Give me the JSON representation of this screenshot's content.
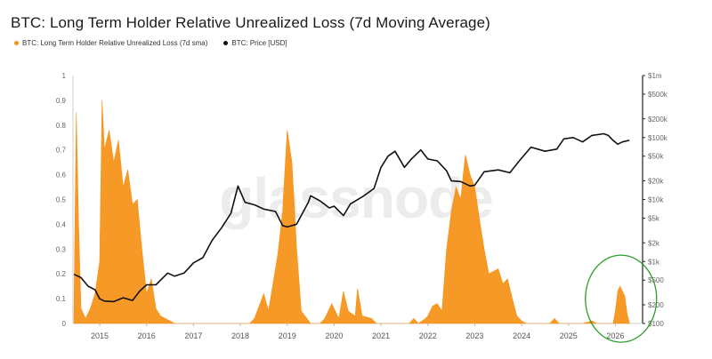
{
  "chart_data": {
    "type": "area",
    "title": "BTC: Long Term Holder Relative Unrealized Loss (7d Moving Average)",
    "watermark": "glassnode",
    "legend": [
      {
        "label": "BTC: Long Term Holder Relative Unrealized Loss (7d sma)",
        "color": "#f7931a"
      },
      {
        "label": "BTC: Price [USD]",
        "color": "#111111"
      }
    ],
    "x_ticks": [
      "2015",
      "2016",
      "2017",
      "2018",
      "2019",
      "2020",
      "2021",
      "2022",
      "2023",
      "2024",
      "2025",
      "2026"
    ],
    "y_left": {
      "ticks": [
        "0",
        "0.1",
        "0.2",
        "0.3",
        "0.4",
        "0.5",
        "0.6",
        "0.7",
        "0.8",
        "0.9",
        "1"
      ],
      "ylim": [
        0,
        1
      ]
    },
    "y_right": {
      "scale": "log",
      "ticks": [
        "$100",
        "$200",
        "$500",
        "$1k",
        "$2k",
        "$5k",
        "$10k",
        "$20k",
        "$50k",
        "$100k",
        "$200k",
        "$500k",
        "$1m"
      ]
    },
    "series": [
      {
        "name": "BTC: Long Term Holder Relative Unrealized Loss (7d sma)",
        "color": "#f7931a",
        "points": [
          [
            2014.45,
            0.05
          ],
          [
            2014.5,
            0.85
          ],
          [
            2014.55,
            0.4
          ],
          [
            2014.6,
            0.06
          ],
          [
            2014.7,
            0.02
          ],
          [
            2014.8,
            0.06
          ],
          [
            2014.9,
            0.12
          ],
          [
            2015.0,
            0.25
          ],
          [
            2015.05,
            0.9
          ],
          [
            2015.1,
            0.7
          ],
          [
            2015.2,
            0.78
          ],
          [
            2015.3,
            0.65
          ],
          [
            2015.4,
            0.74
          ],
          [
            2015.5,
            0.55
          ],
          [
            2015.6,
            0.62
          ],
          [
            2015.7,
            0.48
          ],
          [
            2015.8,
            0.5
          ],
          [
            2015.9,
            0.3
          ],
          [
            2016.0,
            0.12
          ],
          [
            2016.1,
            0.18
          ],
          [
            2016.2,
            0.06
          ],
          [
            2016.3,
            0.03
          ],
          [
            2016.5,
            0.01
          ],
          [
            2016.6,
            0.0
          ],
          [
            2017.0,
            0.0
          ],
          [
            2018.0,
            0.0
          ],
          [
            2018.2,
            0.0
          ],
          [
            2018.3,
            0.02
          ],
          [
            2018.5,
            0.12
          ],
          [
            2018.6,
            0.05
          ],
          [
            2018.8,
            0.28
          ],
          [
            2018.9,
            0.45
          ],
          [
            2019.0,
            0.78
          ],
          [
            2019.1,
            0.65
          ],
          [
            2019.2,
            0.3
          ],
          [
            2019.3,
            0.05
          ],
          [
            2019.5,
            0.0
          ],
          [
            2019.7,
            0.0
          ],
          [
            2019.8,
            0.02
          ],
          [
            2019.95,
            0.08
          ],
          [
            2020.1,
            0.02
          ],
          [
            2020.2,
            0.13
          ],
          [
            2020.3,
            0.05
          ],
          [
            2020.45,
            0.03
          ],
          [
            2020.5,
            0.14
          ],
          [
            2020.6,
            0.03
          ],
          [
            2020.8,
            0.02
          ],
          [
            2020.9,
            0.0
          ],
          [
            2021.0,
            0.0
          ],
          [
            2021.6,
            0.0
          ],
          [
            2021.7,
            0.02
          ],
          [
            2021.8,
            0.0
          ],
          [
            2021.95,
            0.02
          ],
          [
            2022.0,
            0.03
          ],
          [
            2022.1,
            0.07
          ],
          [
            2022.2,
            0.08
          ],
          [
            2022.3,
            0.05
          ],
          [
            2022.4,
            0.3
          ],
          [
            2022.5,
            0.45
          ],
          [
            2022.6,
            0.55
          ],
          [
            2022.7,
            0.5
          ],
          [
            2022.8,
            0.68
          ],
          [
            2022.9,
            0.6
          ],
          [
            2023.0,
            0.55
          ],
          [
            2023.1,
            0.42
          ],
          [
            2023.2,
            0.3
          ],
          [
            2023.3,
            0.2
          ],
          [
            2023.5,
            0.22
          ],
          [
            2023.6,
            0.16
          ],
          [
            2023.7,
            0.18
          ],
          [
            2023.8,
            0.1
          ],
          [
            2023.9,
            0.03
          ],
          [
            2024.0,
            0.01
          ],
          [
            2024.1,
            0.0
          ],
          [
            2024.6,
            0.0
          ],
          [
            2024.7,
            0.02
          ],
          [
            2024.8,
            0.0
          ],
          [
            2025.3,
            0.0
          ],
          [
            2025.5,
            0.01
          ],
          [
            2025.6,
            0.0
          ],
          [
            2025.95,
            0.0
          ],
          [
            2026.0,
            0.05
          ],
          [
            2026.05,
            0.13
          ],
          [
            2026.1,
            0.15
          ],
          [
            2026.2,
            0.11
          ],
          [
            2026.25,
            0.04
          ],
          [
            2026.3,
            0.0
          ]
        ]
      },
      {
        "name": "BTC: Price [USD]",
        "color": "#111111",
        "axis": "right",
        "points": [
          [
            2014.45,
            620
          ],
          [
            2014.6,
            550
          ],
          [
            2014.75,
            400
          ],
          [
            2014.9,
            350
          ],
          [
            2015.0,
            250
          ],
          [
            2015.1,
            230
          ],
          [
            2015.3,
            225
          ],
          [
            2015.5,
            260
          ],
          [
            2015.7,
            235
          ],
          [
            2015.85,
            330
          ],
          [
            2016.0,
            420
          ],
          [
            2016.2,
            420
          ],
          [
            2016.45,
            650
          ],
          [
            2016.6,
            580
          ],
          [
            2016.8,
            650
          ],
          [
            2017.0,
            950
          ],
          [
            2017.2,
            1150
          ],
          [
            2017.4,
            2200
          ],
          [
            2017.6,
            3500
          ],
          [
            2017.8,
            6000
          ],
          [
            2017.95,
            16500
          ],
          [
            2018.1,
            9000
          ],
          [
            2018.3,
            8200
          ],
          [
            2018.5,
            7000
          ],
          [
            2018.75,
            6400
          ],
          [
            2018.9,
            3800
          ],
          [
            2019.0,
            3600
          ],
          [
            2019.2,
            4000
          ],
          [
            2019.45,
            9000
          ],
          [
            2019.5,
            11500
          ],
          [
            2019.7,
            9500
          ],
          [
            2019.9,
            7300
          ],
          [
            2020.0,
            7800
          ],
          [
            2020.2,
            5500
          ],
          [
            2020.35,
            8500
          ],
          [
            2020.6,
            11000
          ],
          [
            2020.85,
            15000
          ],
          [
            2021.0,
            33000
          ],
          [
            2021.15,
            50000
          ],
          [
            2021.3,
            60000
          ],
          [
            2021.5,
            33000
          ],
          [
            2021.65,
            45000
          ],
          [
            2021.85,
            63000
          ],
          [
            2022.0,
            45000
          ],
          [
            2022.2,
            42000
          ],
          [
            2022.4,
            29000
          ],
          [
            2022.5,
            20000
          ],
          [
            2022.7,
            19500
          ],
          [
            2022.9,
            16500
          ],
          [
            2023.0,
            17000
          ],
          [
            2023.2,
            28000
          ],
          [
            2023.5,
            30000
          ],
          [
            2023.75,
            27000
          ],
          [
            2023.95,
            42000
          ],
          [
            2024.2,
            70000
          ],
          [
            2024.5,
            60000
          ],
          [
            2024.75,
            65000
          ],
          [
            2024.9,
            95000
          ],
          [
            2025.1,
            100000
          ],
          [
            2025.3,
            85000
          ],
          [
            2025.5,
            108000
          ],
          [
            2025.75,
            115000
          ],
          [
            2025.85,
            108000
          ],
          [
            2025.95,
            90000
          ],
          [
            2026.05,
            78000
          ],
          [
            2026.15,
            85000
          ],
          [
            2026.3,
            90000
          ]
        ]
      }
    ],
    "annotation": {
      "type": "circle",
      "color": "#2e9e2e",
      "around": "2026 loss spike"
    }
  }
}
